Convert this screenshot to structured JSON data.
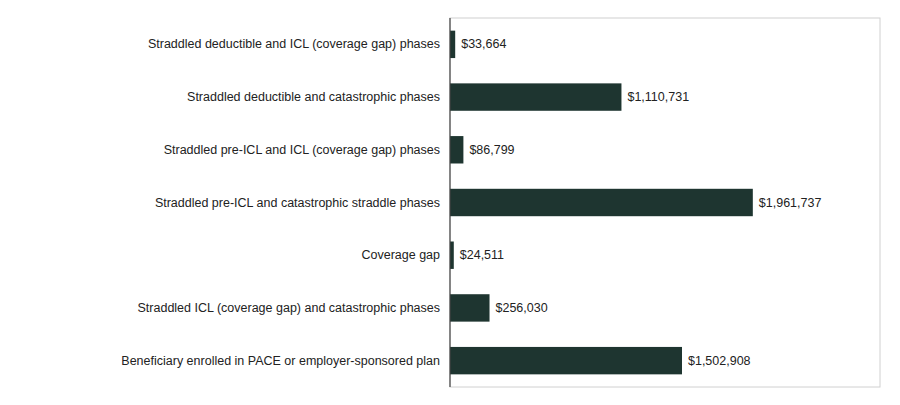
{
  "chart_data": {
    "type": "bar",
    "orientation": "horizontal",
    "categories": [
      "Straddled deductible and ICL (coverage gap) phases",
      "Straddled deductible and catastrophic phases",
      "Straddled pre-ICL and ICL (coverage gap) phases",
      "Straddled pre-ICL and catastrophic straddle phases",
      "Coverage gap",
      "Straddled ICL (coverage gap) and catastrophic phases",
      "Beneficiary enrolled in PACE or employer-sponsored plan"
    ],
    "values": [
      33664,
      1110731,
      86799,
      1961737,
      24511,
      256030,
      1502908
    ],
    "value_labels": [
      "$33,664",
      "$1,110,731",
      "$86,799",
      "$1,961,737",
      "$24,511",
      "$256,030",
      "$1,502,908"
    ],
    "color": "#1e3530",
    "xlim": [
      0,
      2785666.54
    ],
    "data_labels": true,
    "tick_labels": false,
    "grid": false
  }
}
